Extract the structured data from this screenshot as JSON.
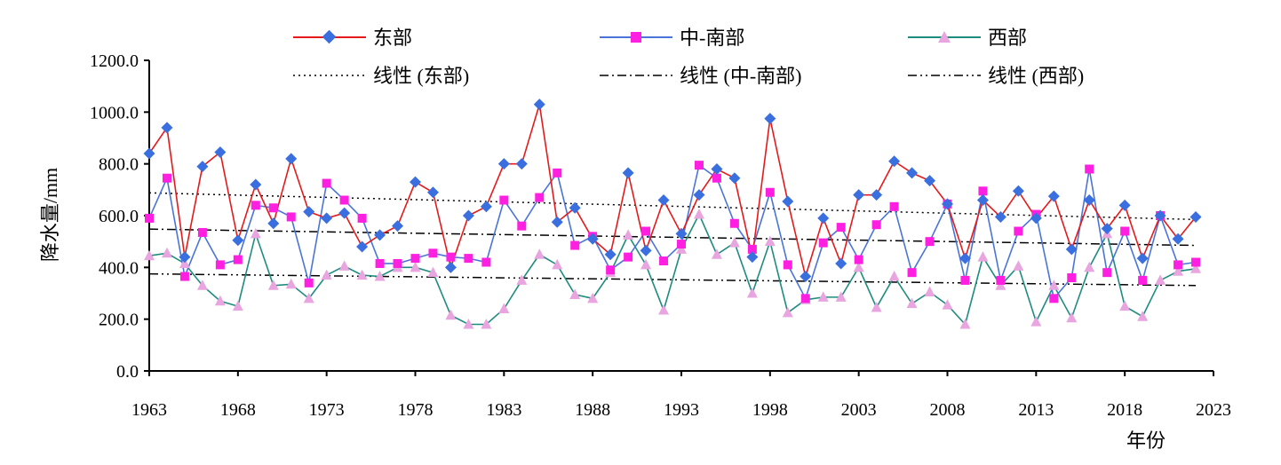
{
  "chart_data": {
    "type": "line",
    "xlabel": "年份",
    "ylabel": "降水量/mm",
    "xlim": [
      1963,
      2023
    ],
    "ylim": [
      0,
      1200
    ],
    "x_ticks": [
      "1963",
      "1968",
      "1973",
      "1978",
      "1983",
      "1988",
      "1993",
      "1998",
      "2003",
      "2008",
      "2013",
      "2018",
      "2023"
    ],
    "y_ticks": [
      "0.0",
      "200.0",
      "400.0",
      "600.0",
      "800.0",
      "1000.0",
      "1200.0"
    ],
    "grid": false,
    "legend_position": "top",
    "x": [
      1963,
      1964,
      1965,
      1966,
      1967,
      1968,
      1969,
      1970,
      1971,
      1972,
      1973,
      1974,
      1975,
      1976,
      1977,
      1978,
      1979,
      1980,
      1981,
      1982,
      1983,
      1984,
      1985,
      1986,
      1987,
      1988,
      1989,
      1990,
      1991,
      1992,
      1993,
      1994,
      1995,
      1996,
      1997,
      1998,
      1999,
      2000,
      2001,
      2002,
      2003,
      2004,
      2005,
      2006,
      2007,
      2008,
      2009,
      2010,
      2011,
      2012,
      2013,
      2014,
      2015,
      2016,
      2017,
      2018,
      2019,
      2020,
      2021,
      2022
    ],
    "series": [
      {
        "name": "东部",
        "color": "#e41a1c",
        "marker_color": "#3a6fe0",
        "marker": "diamond",
        "values": [
          840,
          940,
          440,
          790,
          845,
          505,
          720,
          570,
          820,
          615,
          590,
          610,
          480,
          525,
          560,
          730,
          690,
          400,
          600,
          635,
          800,
          800,
          1030,
          575,
          630,
          510,
          450,
          765,
          465,
          660,
          530,
          680,
          780,
          745,
          440,
          975,
          655,
          365,
          590,
          415,
          680,
          680,
          810,
          765,
          735,
          645,
          435,
          660,
          595,
          695,
          590,
          675,
          470,
          660,
          550,
          640,
          435,
          600,
          510,
          595
        ]
      },
      {
        "name": "中-南部",
        "color": "#4a74d8",
        "marker_color": "#ff1fe0",
        "marker": "square",
        "values": [
          590,
          745,
          365,
          535,
          410,
          430,
          640,
          630,
          595,
          340,
          725,
          660,
          590,
          415,
          415,
          435,
          455,
          440,
          435,
          420,
          660,
          560,
          670,
          765,
          485,
          520,
          390,
          440,
          540,
          425,
          490,
          795,
          745,
          570,
          470,
          690,
          410,
          280,
          495,
          555,
          430,
          565,
          635,
          380,
          500,
          645,
          350,
          695,
          350,
          540,
          605,
          280,
          360,
          780,
          380,
          540,
          350,
          600,
          410,
          420
        ]
      },
      {
        "name": "西部",
        "color": "#1e8c7e",
        "marker_color": "#e8a5e0",
        "marker": "triangle",
        "values": [
          445,
          455,
          415,
          330,
          270,
          250,
          530,
          330,
          335,
          280,
          370,
          405,
          370,
          365,
          400,
          400,
          380,
          215,
          180,
          180,
          240,
          350,
          450,
          410,
          295,
          280,
          380,
          525,
          410,
          235,
          470,
          605,
          450,
          495,
          300,
          500,
          225,
          275,
          285,
          285,
          400,
          245,
          365,
          260,
          305,
          255,
          180,
          440,
          330,
          405,
          190,
          330,
          205,
          400,
          530,
          250,
          210,
          350,
          385,
          395
        ]
      }
    ],
    "trendlines": [
      {
        "name": "线性 (东部)",
        "dash": "dotted",
        "from": [
          1963,
          688
        ],
        "to": [
          2022,
          585
        ]
      },
      {
        "name": "线性 (中-南部)",
        "dash": "dash-dot",
        "from": [
          1963,
          548
        ],
        "to": [
          2022,
          485
        ]
      },
      {
        "name": "线性 (西部)",
        "dash": "dash-dot-dot",
        "from": [
          1963,
          375
        ],
        "to": [
          2022,
          330
        ]
      }
    ]
  }
}
